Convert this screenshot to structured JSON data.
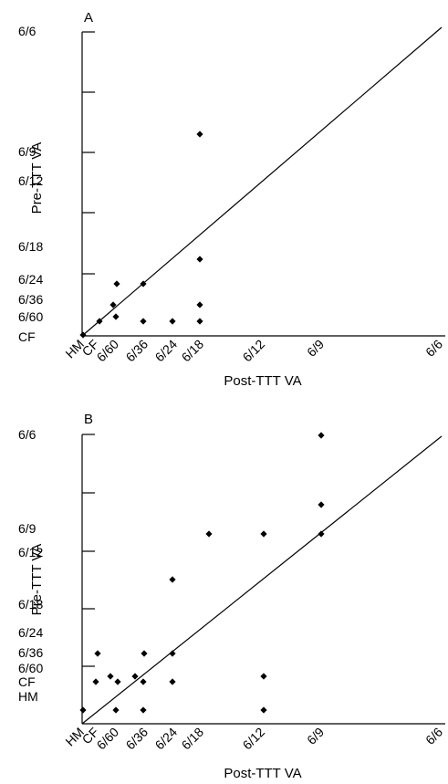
{
  "chart_data": [
    {
      "type": "scatter",
      "panel_label": "A",
      "xlabel": "Post-TTT VA",
      "ylabel": "Pre-TTT VA",
      "y_scale": "reciprocal visual acuity (Snellen fraction)",
      "x_tick_labels": [
        "HM",
        "CF",
        "6/60",
        "6/36",
        "6/24",
        "6/18",
        "6/12",
        "6/9",
        "6/6"
      ],
      "y_tick_labels": [
        "6/6",
        "6/9",
        "6/12",
        "6/18",
        "6/24",
        "6/36",
        "6/60",
        "CF"
      ],
      "reference_line": "y = x",
      "points": [
        {
          "x": "HM",
          "y": "HM"
        },
        {
          "x": "CF",
          "y": "CF"
        },
        {
          "x": "6/60",
          "y": "6/60"
        },
        {
          "x": "6/60",
          "y": "6/36"
        },
        {
          "x": "6/60",
          "y": "6/24"
        },
        {
          "x": "6/36",
          "y": "6/24"
        },
        {
          "x": "6/36",
          "y": "CF"
        },
        {
          "x": "6/24",
          "y": "CF"
        },
        {
          "x": "6/18",
          "y": "6/9"
        },
        {
          "x": "6/18",
          "y": "6/18"
        },
        {
          "x": "6/18",
          "y": "6/36"
        },
        {
          "x": "6/18",
          "y": "CF"
        }
      ]
    },
    {
      "type": "scatter",
      "panel_label": "B",
      "xlabel": "Post-TTT VA",
      "ylabel": "Pre-TTT VA",
      "y_scale": "reciprocal visual acuity (Snellen fraction)",
      "x_tick_labels": [
        "HM",
        "CF",
        "6/60",
        "6/36",
        "6/24",
        "6/18",
        "6/12",
        "6/9",
        "6/6"
      ],
      "y_tick_labels": [
        "6/6",
        "6/9",
        "6/12",
        "6/18",
        "6/24",
        "6/36",
        "6/60",
        "CF",
        "HM"
      ],
      "reference_line": "y = x",
      "points": [
        {
          "x": "HM",
          "y": "HM"
        },
        {
          "x": "CF",
          "y": "CF"
        },
        {
          "x": "CF",
          "y": "6/36"
        },
        {
          "x": "6/60",
          "y": "6/60"
        },
        {
          "x": "6/60",
          "y": "CF"
        },
        {
          "x": "6/60",
          "y": "HM"
        },
        {
          "x": "6/36",
          "y": "6/60"
        },
        {
          "x": "6/36",
          "y": "6/36"
        },
        {
          "x": "6/36",
          "y": "CF"
        },
        {
          "x": "6/36",
          "y": "HM"
        },
        {
          "x": "6/24",
          "y": "6/18"
        },
        {
          "x": "6/24",
          "y": "6/36"
        },
        {
          "x": "6/24",
          "y": "CF"
        },
        {
          "x": "6/18",
          "y": "6/12"
        },
        {
          "x": "6/12",
          "y": "6/12"
        },
        {
          "x": "6/12",
          "y": "6/60"
        },
        {
          "x": "6/12",
          "y": "HM"
        },
        {
          "x": "6/9",
          "y": "6/6"
        },
        {
          "x": "6/9",
          "y": "6/9"
        },
        {
          "x": "6/9",
          "y": "6/12"
        }
      ]
    }
  ]
}
